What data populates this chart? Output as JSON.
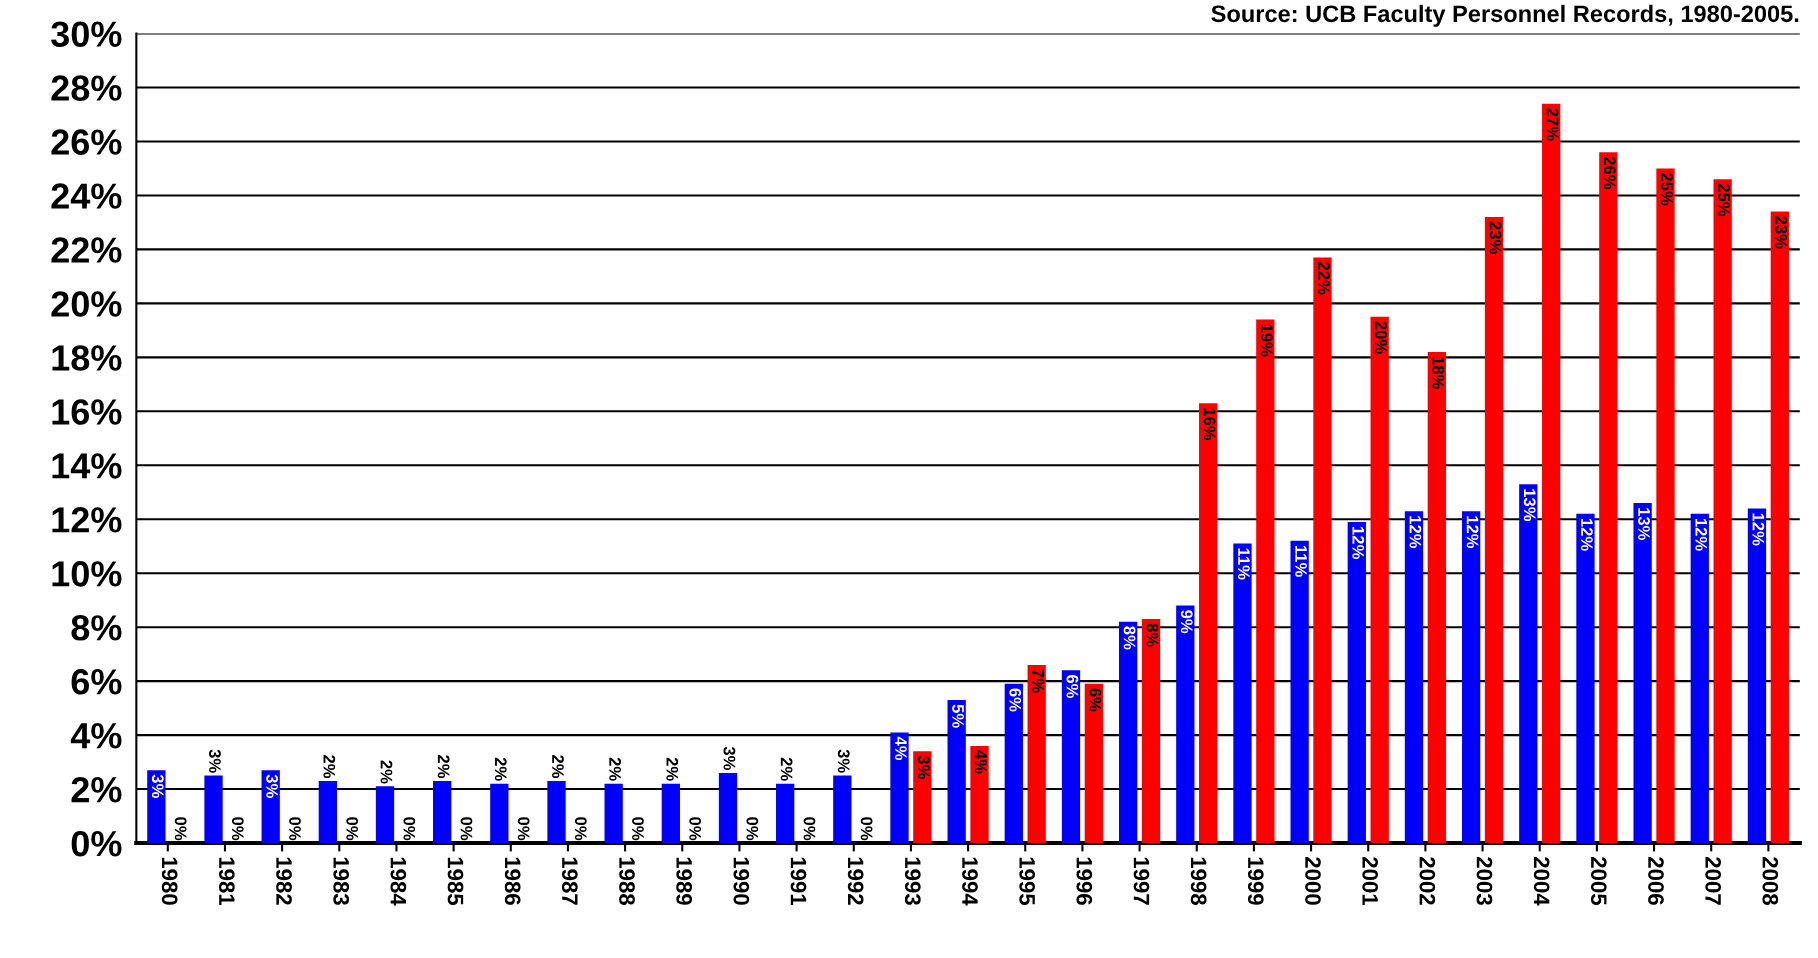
{
  "chart_data": {
    "type": "bar",
    "annotations": [
      "Source: UCB Faculty Personnel Records, 1980-2005."
    ],
    "categories": [
      "1980",
      "1981",
      "1982",
      "1983",
      "1984",
      "1985",
      "1986",
      "1987",
      "1988",
      "1989",
      "1990",
      "1991",
      "1992",
      "1993",
      "1994",
      "1995",
      "1996",
      "1997",
      "1998",
      "1999",
      "2000",
      "2001",
      "2002",
      "2003",
      "2004",
      "2005",
      "2006",
      "2007",
      "2008"
    ],
    "series": [
      {
        "color": "#0000ff",
        "values": [
          2.7,
          2.5,
          2.7,
          2.3,
          2.1,
          2.3,
          2.2,
          2.3,
          2.2,
          2.2,
          2.6,
          2.2,
          2.5,
          4.1,
          5.3,
          5.9,
          6.4,
          8.2,
          8.8,
          11.1,
          11.2,
          11.9,
          12.3,
          12.3,
          13.3,
          12.2,
          12.6,
          12.2,
          12.4
        ],
        "value_labels": [
          "3%",
          "3%",
          "3%",
          "2%",
          "2%",
          "2%",
          "2%",
          "2%",
          "2%",
          "2%",
          "3%",
          "2%",
          "3%",
          "4%",
          "5%",
          "6%",
          "6%",
          "8%",
          "9%",
          "11%",
          "11%",
          "12%",
          "12%",
          "12%",
          "13%",
          "12%",
          "13%",
          "12%",
          "12%"
        ]
      },
      {
        "color": "#ff0000",
        "values": [
          0,
          0,
          0,
          0,
          0,
          0,
          0,
          0,
          0,
          0,
          0,
          0,
          0,
          3.4,
          3.6,
          6.6,
          5.9,
          8.3,
          16.3,
          19.4,
          21.7,
          19.5,
          18.2,
          23.2,
          27.4,
          25.6,
          25.0,
          24.6,
          23.4
        ],
        "value_labels": [
          "0%",
          "0%",
          "0%",
          "0%",
          "0%",
          "0%",
          "0%",
          "0%",
          "0%",
          "0%",
          "0%",
          "0%",
          "0%",
          "3%",
          "4%",
          "7%",
          "6%",
          "8%",
          "16%",
          "19%",
          "22%",
          "20%",
          "18%",
          "23%",
          "27%",
          "26%",
          "25%",
          "25%",
          "23%"
        ]
      }
    ],
    "ylim": [
      0,
      30
    ],
    "yticks": [
      {
        "value": 0,
        "label": "0%"
      },
      {
        "value": 2,
        "label": "2%"
      },
      {
        "value": 4,
        "label": "4%"
      },
      {
        "value": 6,
        "label": "6%"
      },
      {
        "value": 8,
        "label": "8%"
      },
      {
        "value": 10,
        "label": "10%"
      },
      {
        "value": 12,
        "label": "12%"
      },
      {
        "value": 14,
        "label": "14%"
      },
      {
        "value": 16,
        "label": "16%"
      },
      {
        "value": 18,
        "label": "18%"
      },
      {
        "value": 20,
        "label": "20%"
      },
      {
        "value": 22,
        "label": "22%"
      },
      {
        "value": 24,
        "label": "24%"
      },
      {
        "value": 26,
        "label": "26%"
      },
      {
        "value": 28,
        "label": "28%"
      },
      {
        "value": 30,
        "label": "30%"
      }
    ],
    "grid": "y"
  }
}
